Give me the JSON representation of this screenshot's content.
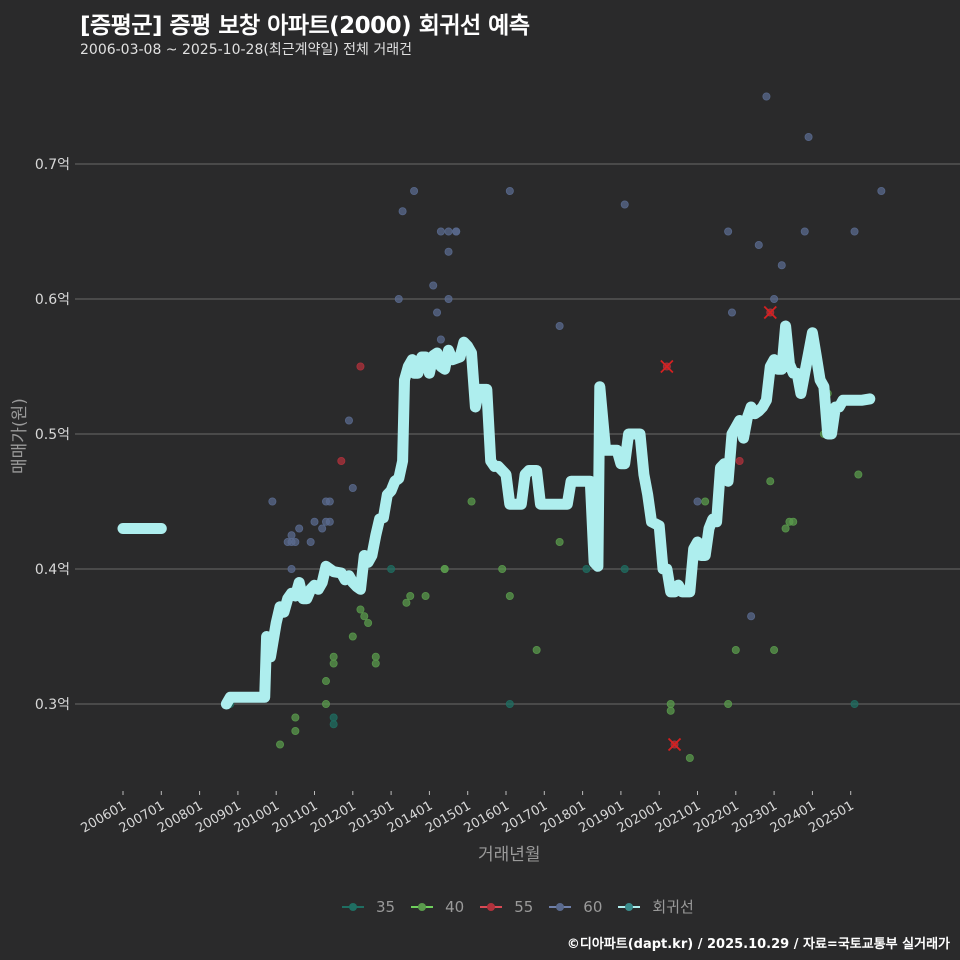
{
  "header": {
    "title": "[증평군] 증평 보창 아파트(2000) 회귀선 예측",
    "subtitle": "2006-03-08 ~ 2025-10-28(최근계약일) 전체 거래건"
  },
  "footer": {
    "credit": "©디아파트(dapt.kr) / 2025.10.29 / 자료=국토교통부 실거래가"
  },
  "colors": {
    "background": "#2a2a2b",
    "grid": "#5e5e5e",
    "s35": "#1f6e62",
    "s40": "#5a9a4c",
    "s55": "#b0323c",
    "s60": "#5a6a8e",
    "regression": "#aeeeee",
    "cancelled_marker": "#d62020"
  },
  "chart_data": {
    "type": "scatter",
    "title": "[증평군] 증평 보창 아파트(2000) 회귀선 예측",
    "subtitle": "2006-03-08 ~ 2025-10-28(최근계약일) 전체 거래건",
    "xlabel": "거래년월",
    "ylabel": "매매가(원)",
    "x_ticks": [
      "200601",
      "200701",
      "200801",
      "200901",
      "201001",
      "201101",
      "201201",
      "201301",
      "201401",
      "201501",
      "201601",
      "201701",
      "201801",
      "201901",
      "202001",
      "202101",
      "202201",
      "202301",
      "202401",
      "202501"
    ],
    "y_ticks": [
      "0.3억",
      "0.4억",
      "0.5억",
      "0.6억",
      "0.7억"
    ],
    "y_tick_values": [
      0.3,
      0.4,
      0.5,
      0.6,
      0.7
    ],
    "ylim": [
      0.24,
      0.76
    ],
    "grid": "horizontal",
    "legend_position": "bottom",
    "legend": [
      "35",
      "40",
      "55",
      "60",
      "회귀선"
    ],
    "series": [
      {
        "name": "35",
        "color": "#1f6e62",
        "points": [
          [
            2008.8,
            0.3
          ],
          [
            2011.5,
            0.285
          ],
          [
            2011.5,
            0.29
          ],
          [
            2013.0,
            0.4
          ],
          [
            2016.1,
            0.3
          ],
          [
            2018.1,
            0.4
          ],
          [
            2019.1,
            0.4
          ],
          [
            2025.1,
            0.3
          ]
        ]
      },
      {
        "name": "40",
        "color": "#5a9a4c",
        "points": [
          [
            2010.1,
            0.27
          ],
          [
            2010.5,
            0.28
          ],
          [
            2010.5,
            0.29
          ],
          [
            2011.3,
            0.3
          ],
          [
            2011.3,
            0.317
          ],
          [
            2011.5,
            0.335
          ],
          [
            2011.5,
            0.33
          ],
          [
            2012.0,
            0.35
          ],
          [
            2012.2,
            0.37
          ],
          [
            2012.3,
            0.365
          ],
          [
            2012.4,
            0.36
          ],
          [
            2012.6,
            0.335
          ],
          [
            2012.6,
            0.33
          ],
          [
            2013.4,
            0.375
          ],
          [
            2013.5,
            0.38
          ],
          [
            2013.9,
            0.38
          ],
          [
            2014.4,
            0.4
          ],
          [
            2014.4,
            0.4
          ],
          [
            2015.1,
            0.45
          ],
          [
            2015.9,
            0.4
          ],
          [
            2016.1,
            0.38
          ],
          [
            2016.8,
            0.34
          ],
          [
            2017.4,
            0.42
          ],
          [
            2020.3,
            0.295
          ],
          [
            2020.3,
            0.3
          ],
          [
            2020.8,
            0.26
          ],
          [
            2021.2,
            0.45
          ],
          [
            2021.8,
            0.3
          ],
          [
            2022.0,
            0.34
          ],
          [
            2022.9,
            0.465
          ],
          [
            2023.0,
            0.34
          ],
          [
            2023.3,
            0.43
          ],
          [
            2023.4,
            0.435
          ],
          [
            2023.5,
            0.435
          ],
          [
            2024.3,
            0.5
          ],
          [
            2024.4,
            0.53
          ],
          [
            2025.2,
            0.47
          ]
        ]
      },
      {
        "name": "55",
        "color": "#b0323c",
        "points": [
          [
            2011.7,
            0.48
          ],
          [
            2012.2,
            0.55
          ],
          [
            2020.2,
            0.55
          ],
          [
            2020.4,
            0.27
          ],
          [
            2022.1,
            0.48
          ],
          [
            2022.9,
            0.59
          ]
        ],
        "cancelled": [
          [
            2020.2,
            0.55
          ],
          [
            2020.4,
            0.27
          ],
          [
            2022.9,
            0.59
          ]
        ]
      },
      {
        "name": "60",
        "color": "#5a6a8e",
        "points": [
          [
            2009.9,
            0.45
          ],
          [
            2010.3,
            0.42
          ],
          [
            2010.4,
            0.425
          ],
          [
            2010.4,
            0.42
          ],
          [
            2010.5,
            0.42
          ],
          [
            2010.6,
            0.43
          ],
          [
            2010.9,
            0.42
          ],
          [
            2011.0,
            0.435
          ],
          [
            2011.2,
            0.43
          ],
          [
            2011.3,
            0.435
          ],
          [
            2011.3,
            0.45
          ],
          [
            2011.4,
            0.45
          ],
          [
            2011.4,
            0.435
          ],
          [
            2011.9,
            0.51
          ],
          [
            2012.0,
            0.46
          ],
          [
            2010.4,
            0.4
          ],
          [
            2013.2,
            0.6
          ],
          [
            2013.3,
            0.665
          ],
          [
            2013.6,
            0.68
          ],
          [
            2014.1,
            0.61
          ],
          [
            2014.2,
            0.59
          ],
          [
            2014.3,
            0.57
          ],
          [
            2014.3,
            0.65
          ],
          [
            2014.5,
            0.65
          ],
          [
            2014.5,
            0.635
          ],
          [
            2014.5,
            0.6
          ],
          [
            2014.7,
            0.65
          ],
          [
            2014.7,
            0.65
          ],
          [
            2016.1,
            0.68
          ],
          [
            2017.4,
            0.58
          ],
          [
            2019.1,
            0.67
          ],
          [
            2021.0,
            0.45
          ],
          [
            2021.8,
            0.65
          ],
          [
            2021.9,
            0.59
          ],
          [
            2022.4,
            0.365
          ],
          [
            2022.6,
            0.64
          ],
          [
            2022.8,
            0.75
          ],
          [
            2023.0,
            0.6
          ],
          [
            2023.2,
            0.625
          ],
          [
            2023.8,
            0.65
          ],
          [
            2023.9,
            0.72
          ],
          [
            2025.1,
            0.65
          ],
          [
            2025.8,
            0.68
          ]
        ]
      },
      {
        "name": "회귀선",
        "color": "#aeeeee",
        "type": "line",
        "segments": [
          [
            [
              2006.0,
              0.43
            ],
            [
              2007.0,
              0.43
            ]
          ],
          [
            [
              2008.7,
              0.3
            ],
            [
              2008.8,
              0.305
            ],
            [
              2009.7,
              0.305
            ],
            [
              2009.75,
              0.35
            ],
            [
              2009.85,
              0.335
            ],
            [
              2010.0,
              0.36
            ],
            [
              2010.1,
              0.372
            ],
            [
              2010.2,
              0.368
            ],
            [
              2010.3,
              0.378
            ],
            [
              2010.4,
              0.382
            ],
            [
              2010.5,
              0.38
            ],
            [
              2010.6,
              0.39
            ],
            [
              2010.7,
              0.378
            ],
            [
              2010.8,
              0.378
            ],
            [
              2010.9,
              0.385
            ],
            [
              2011.0,
              0.388
            ],
            [
              2011.1,
              0.385
            ],
            [
              2011.2,
              0.39
            ],
            [
              2011.3,
              0.402
            ],
            [
              2011.5,
              0.398
            ],
            [
              2011.7,
              0.397
            ],
            [
              2011.8,
              0.392
            ],
            [
              2011.9,
              0.395
            ],
            [
              2012.0,
              0.39
            ],
            [
              2012.1,
              0.387
            ],
            [
              2012.2,
              0.385
            ],
            [
              2012.3,
              0.41
            ],
            [
              2012.4,
              0.405
            ],
            [
              2012.5,
              0.41
            ],
            [
              2012.6,
              0.425
            ],
            [
              2012.7,
              0.437
            ],
            [
              2012.8,
              0.438
            ],
            [
              2012.9,
              0.455
            ],
            [
              2013.0,
              0.458
            ],
            [
              2013.1,
              0.465
            ],
            [
              2013.2,
              0.467
            ],
            [
              2013.3,
              0.48
            ],
            [
              2013.35,
              0.54
            ],
            [
              2013.45,
              0.55
            ],
            [
              2013.55,
              0.555
            ],
            [
              2013.6,
              0.545
            ],
            [
              2013.7,
              0.545
            ],
            [
              2013.8,
              0.557
            ],
            [
              2013.9,
              0.557
            ],
            [
              2014.0,
              0.545
            ],
            [
              2014.1,
              0.558
            ],
            [
              2014.2,
              0.56
            ],
            [
              2014.3,
              0.55
            ],
            [
              2014.4,
              0.548
            ],
            [
              2014.5,
              0.562
            ],
            [
              2014.6,
              0.555
            ],
            [
              2014.8,
              0.557
            ],
            [
              2014.9,
              0.568
            ],
            [
              2015.0,
              0.565
            ],
            [
              2015.1,
              0.56
            ],
            [
              2015.2,
              0.52
            ],
            [
              2015.3,
              0.533
            ],
            [
              2015.5,
              0.533
            ],
            [
              2015.6,
              0.48
            ],
            [
              2015.7,
              0.476
            ],
            [
              2015.8,
              0.476
            ],
            [
              2015.9,
              0.473
            ],
            [
              2016.0,
              0.47
            ],
            [
              2016.1,
              0.448
            ],
            [
              2016.4,
              0.448
            ],
            [
              2016.5,
              0.47
            ],
            [
              2016.6,
              0.473
            ],
            [
              2016.8,
              0.473
            ],
            [
              2016.9,
              0.448
            ],
            [
              2017.6,
              0.448
            ],
            [
              2017.7,
              0.465
            ],
            [
              2018.2,
              0.465
            ],
            [
              2018.3,
              0.405
            ],
            [
              2018.4,
              0.402
            ],
            [
              2018.45,
              0.535
            ],
            [
              2018.6,
              0.488
            ],
            [
              2018.9,
              0.488
            ],
            [
              2019.0,
              0.478
            ],
            [
              2019.1,
              0.478
            ],
            [
              2019.2,
              0.5
            ],
            [
              2019.5,
              0.5
            ],
            [
              2019.6,
              0.47
            ],
            [
              2019.7,
              0.455
            ],
            [
              2019.8,
              0.435
            ],
            [
              2020.0,
              0.432
            ],
            [
              2020.1,
              0.4
            ],
            [
              2020.2,
              0.4
            ],
            [
              2020.3,
              0.383
            ],
            [
              2020.4,
              0.383
            ],
            [
              2020.5,
              0.388
            ],
            [
              2020.6,
              0.383
            ],
            [
              2020.8,
              0.383
            ],
            [
              2020.9,
              0.415
            ],
            [
              2021.0,
              0.42
            ],
            [
              2021.1,
              0.41
            ],
            [
              2021.2,
              0.41
            ],
            [
              2021.3,
              0.43
            ],
            [
              2021.4,
              0.437
            ],
            [
              2021.5,
              0.435
            ],
            [
              2021.6,
              0.475
            ],
            [
              2021.7,
              0.478
            ],
            [
              2021.8,
              0.465
            ],
            [
              2021.9,
              0.5
            ],
            [
              2022.0,
              0.505
            ],
            [
              2022.1,
              0.51
            ],
            [
              2022.2,
              0.497
            ],
            [
              2022.3,
              0.512
            ],
            [
              2022.4,
              0.52
            ],
            [
              2022.5,
              0.515
            ],
            [
              2022.6,
              0.517
            ],
            [
              2022.7,
              0.52
            ],
            [
              2022.8,
              0.525
            ],
            [
              2022.9,
              0.55
            ],
            [
              2023.0,
              0.555
            ],
            [
              2023.1,
              0.548
            ],
            [
              2023.2,
              0.548
            ],
            [
              2023.3,
              0.58
            ],
            [
              2023.4,
              0.552
            ],
            [
              2023.5,
              0.545
            ],
            [
              2023.6,
              0.545
            ],
            [
              2023.7,
              0.53
            ],
            [
              2023.8,
              0.545
            ],
            [
              2023.9,
              0.56
            ],
            [
              2024.0,
              0.575
            ],
            [
              2024.1,
              0.558
            ],
            [
              2024.2,
              0.54
            ],
            [
              2024.3,
              0.535
            ],
            [
              2024.4,
              0.5
            ],
            [
              2024.5,
              0.5
            ],
            [
              2024.6,
              0.52
            ],
            [
              2024.7,
              0.52
            ],
            [
              2024.8,
              0.525
            ],
            [
              2025.3,
              0.525
            ],
            [
              2025.5,
              0.526
            ]
          ]
        ]
      }
    ]
  }
}
